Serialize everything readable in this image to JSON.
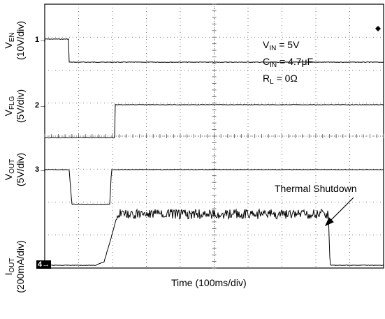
{
  "chart_data": {
    "type": "line",
    "title": "",
    "xlabel": "Time (100ms/div)",
    "x_divisions": 10,
    "y_divisions": 8,
    "grid": true,
    "channels": [
      {
        "marker": "1",
        "name": "V",
        "sub": "EN",
        "scale": "(10V/div)",
        "values_div": [
          [
            0,
            0
          ],
          [
            0.72,
            0
          ],
          [
            0.72,
            -0.7
          ],
          [
            10,
            -0.7
          ]
        ]
      },
      {
        "marker": "2",
        "name": "V",
        "sub": "FLG",
        "scale": "(5V/div)",
        "values_div": [
          [
            0,
            -1.0
          ],
          [
            2.07,
            -1.0
          ],
          [
            2.07,
            0
          ],
          [
            10,
            0
          ]
        ]
      },
      {
        "marker": "3",
        "name": "V",
        "sub": "OUT",
        "scale": "(5V/div)",
        "values_div": [
          [
            0,
            0
          ],
          [
            0.72,
            0
          ],
          [
            0.8,
            -1.05
          ],
          [
            1.92,
            -1.05
          ],
          [
            1.97,
            0
          ],
          [
            10,
            0
          ]
        ]
      },
      {
        "marker": "4",
        "name": "I",
        "sub": "OUT",
        "scale": "(200mA/div)",
        "values_div": [
          [
            0,
            0
          ],
          [
            1.5,
            0
          ],
          [
            1.75,
            0.1
          ],
          [
            1.95,
            0.8
          ],
          [
            2.15,
            1.55
          ],
          [
            8.37,
            1.55
          ],
          [
            8.42,
            0
          ],
          [
            10,
            0
          ]
        ]
      }
    ],
    "conditions": [
      {
        "name": "V",
        "sub": "IN",
        "value": " = 5V"
      },
      {
        "name": "C",
        "sub": "IN",
        "value": " = 4.7μF"
      },
      {
        "name": "R",
        "sub": "L",
        "value": " = 0Ω"
      }
    ],
    "annotation": {
      "text": "Thermal Shutdown"
    }
  }
}
